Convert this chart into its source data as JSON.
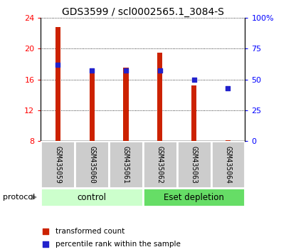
{
  "title": "GDS3599 / scl0002565.1_3084-S",
  "samples": [
    "GSM435059",
    "GSM435060",
    "GSM435061",
    "GSM435062",
    "GSM435063",
    "GSM435064"
  ],
  "red_values": [
    22.8,
    17.4,
    17.5,
    19.5,
    15.2,
    8.1
  ],
  "blue_values_pct": [
    62,
    57,
    57,
    57,
    50,
    43
  ],
  "red_base": 8.0,
  "ylim_left": [
    8,
    24
  ],
  "ylim_right": [
    0,
    100
  ],
  "left_ticks": [
    8,
    12,
    16,
    20,
    24
  ],
  "right_ticks": [
    0,
    25,
    50,
    75,
    100
  ],
  "right_tick_labels": [
    "0",
    "25",
    "50",
    "75",
    "100%"
  ],
  "groups": [
    {
      "label": "control",
      "indices": [
        0,
        1,
        2
      ],
      "color": "#ccffcc",
      "edge": "#aaddaa"
    },
    {
      "label": "Eset depletion",
      "indices": [
        3,
        4,
        5
      ],
      "color": "#66dd66",
      "edge": "#44bb44"
    }
  ],
  "protocol_label": "protocol",
  "legend_red_label": "transformed count",
  "legend_blue_label": "percentile rank within the sample",
  "bar_color": "#cc2200",
  "dot_color": "#2222cc",
  "sample_box_color": "#cccccc",
  "title_fontsize": 10,
  "tick_fontsize": 8,
  "bar_width": 0.15
}
